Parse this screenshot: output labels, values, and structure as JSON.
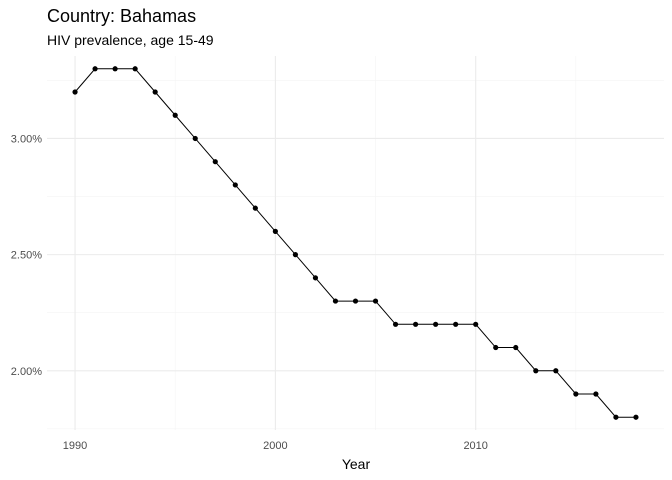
{
  "chart_data": {
    "type": "line",
    "title": "Country: Bahamas",
    "subtitle": "HIV prevalence, age 15-49",
    "xlabel": "Year",
    "ylabel": "",
    "x": [
      1990,
      1991,
      1992,
      1993,
      1994,
      1995,
      1996,
      1997,
      1998,
      1999,
      2000,
      2001,
      2002,
      2003,
      2004,
      2005,
      2006,
      2007,
      2008,
      2009,
      2010,
      2011,
      2012,
      2013,
      2014,
      2015,
      2016,
      2017,
      2018
    ],
    "y": [
      3.2,
      3.3,
      3.3,
      3.3,
      3.2,
      3.1,
      3.0,
      2.9,
      2.8,
      2.7,
      2.6,
      2.5,
      2.4,
      2.3,
      2.3,
      2.3,
      2.2,
      2.2,
      2.2,
      2.2,
      2.2,
      2.1,
      2.1,
      2.0,
      2.0,
      1.9,
      1.9,
      1.8,
      1.8
    ],
    "xlim": [
      1988.6,
      2019.4
    ],
    "ylim": [
      1.745,
      3.355
    ],
    "x_ticks": [
      1990,
      2000,
      2010
    ],
    "x_tick_labels": [
      "1990",
      "2000",
      "2010"
    ],
    "x_minor_ticks": [
      1995,
      2005,
      2015
    ],
    "y_ticks": [
      2.0,
      2.5,
      3.0
    ],
    "y_tick_labels": [
      "2.00%",
      "2.50%",
      "3.00%"
    ],
    "y_minor_ticks": [
      1.75,
      2.25,
      2.75,
      3.25
    ],
    "grid": true,
    "legend": "none",
    "colors": {
      "line": "#000000",
      "point": "#000000",
      "grid_major": "#ebebeb",
      "grid_minor": "#f4f4f4",
      "tick_text": "#4d4d4d"
    }
  }
}
